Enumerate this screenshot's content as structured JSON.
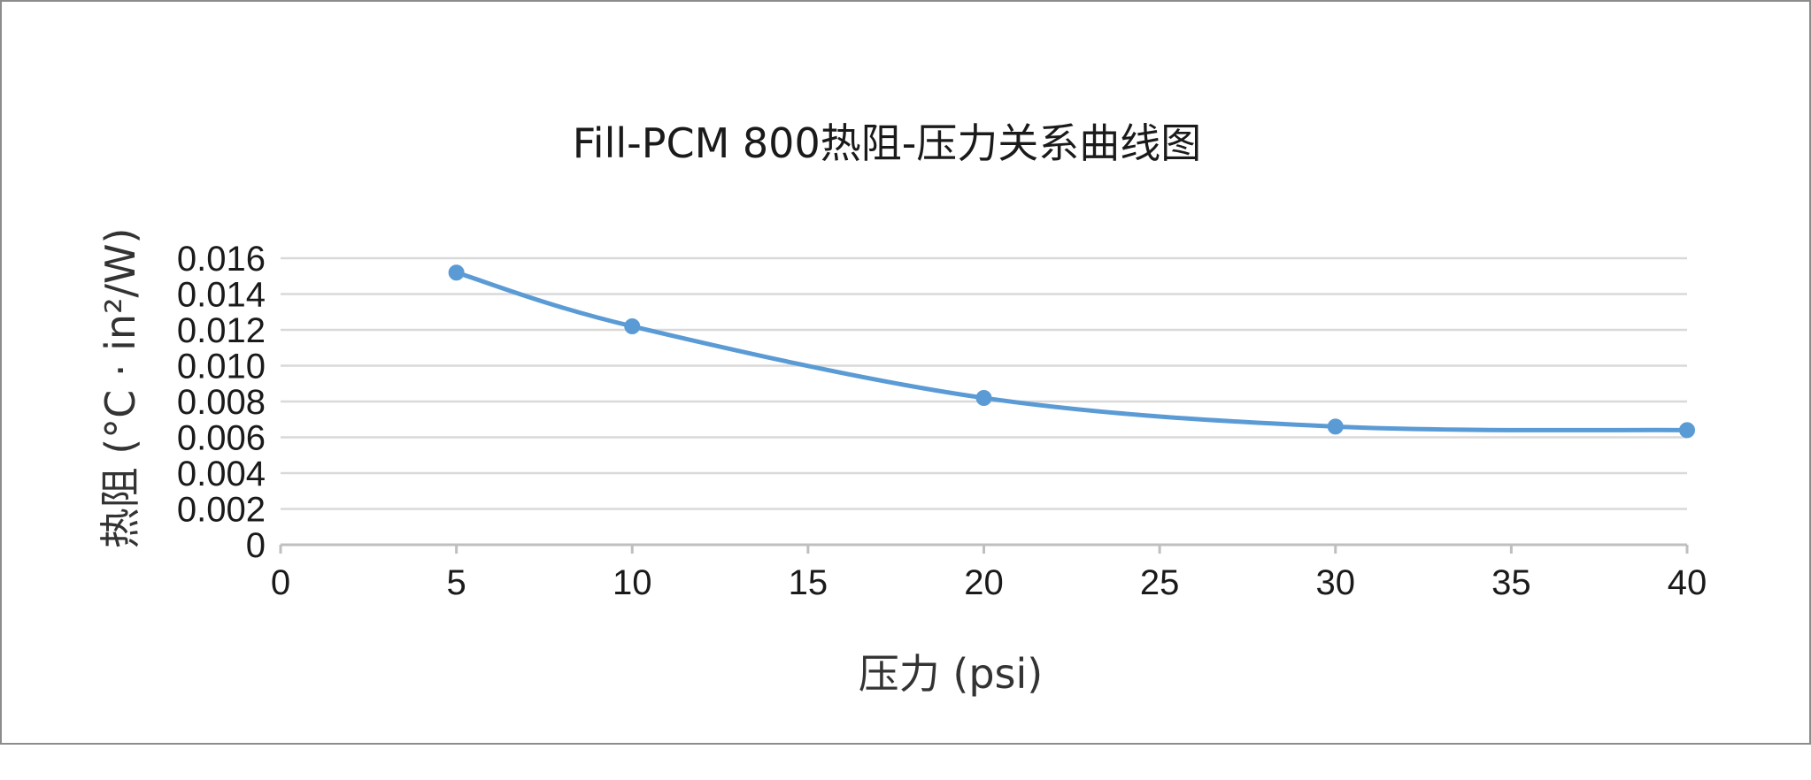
{
  "chart_data": {
    "type": "line",
    "title": "Fill-PCM 800热阻-压力关系曲线图",
    "xlabel": "压力 (psi)",
    "ylabel": "热阻 (°C · in²/W)",
    "x": [
      5,
      10,
      20,
      30,
      40
    ],
    "series": [
      {
        "values": [
          0.0152,
          0.0122,
          0.0082,
          0.0066,
          0.0064
        ]
      }
    ],
    "xlim": [
      0,
      40
    ],
    "ylim": [
      0,
      0.016
    ],
    "x_ticks": [
      "0",
      "5",
      "10",
      "15",
      "20",
      "25",
      "30",
      "35",
      "40"
    ],
    "y_ticks": [
      "0",
      "0.002",
      "0.004",
      "0.006",
      "0.008",
      "0.010",
      "0.012",
      "0.014",
      "0.016"
    ],
    "grid": "horizontal",
    "smoothed": true,
    "colors": {
      "series": "#5b9bd5",
      "grid": "#d9d9d9",
      "axis": "#bfbfbf"
    }
  }
}
